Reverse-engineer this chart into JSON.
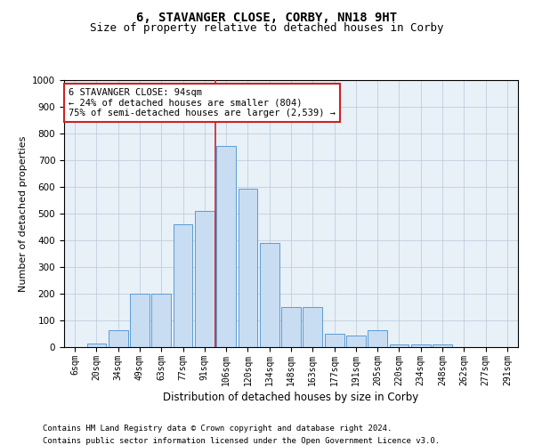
{
  "title": "6, STAVANGER CLOSE, CORBY, NN18 9HT",
  "subtitle": "Size of property relative to detached houses in Corby",
  "xlabel": "Distribution of detached houses by size in Corby",
  "ylabel": "Number of detached properties",
  "categories": [
    "6sqm",
    "20sqm",
    "34sqm",
    "49sqm",
    "63sqm",
    "77sqm",
    "91sqm",
    "106sqm",
    "120sqm",
    "134sqm",
    "148sqm",
    "163sqm",
    "177sqm",
    "191sqm",
    "205sqm",
    "220sqm",
    "234sqm",
    "248sqm",
    "262sqm",
    "277sqm",
    "291sqm"
  ],
  "values": [
    0,
    15,
    62,
    200,
    200,
    460,
    510,
    755,
    595,
    390,
    150,
    150,
    50,
    45,
    65,
    10,
    10,
    10,
    0,
    0,
    0
  ],
  "bar_color": "#c8ddf2",
  "bar_edge_color": "#5b9bd5",
  "grid_color": "#b8c8d8",
  "vline_color": "#cc2222",
  "annotation_text": "6 STAVANGER CLOSE: 94sqm\n← 24% of detached houses are smaller (804)\n75% of semi-detached houses are larger (2,539) →",
  "annotation_box_color": "#cc2222",
  "annotation_fill": "white",
  "ylim": [
    0,
    1000
  ],
  "yticks": [
    0,
    100,
    200,
    300,
    400,
    500,
    600,
    700,
    800,
    900,
    1000
  ],
  "footnote1": "Contains HM Land Registry data © Crown copyright and database right 2024.",
  "footnote2": "Contains public sector information licensed under the Open Government Licence v3.0.",
  "background_color": "#e8f0f8",
  "title_fontsize": 10,
  "subtitle_fontsize": 9
}
